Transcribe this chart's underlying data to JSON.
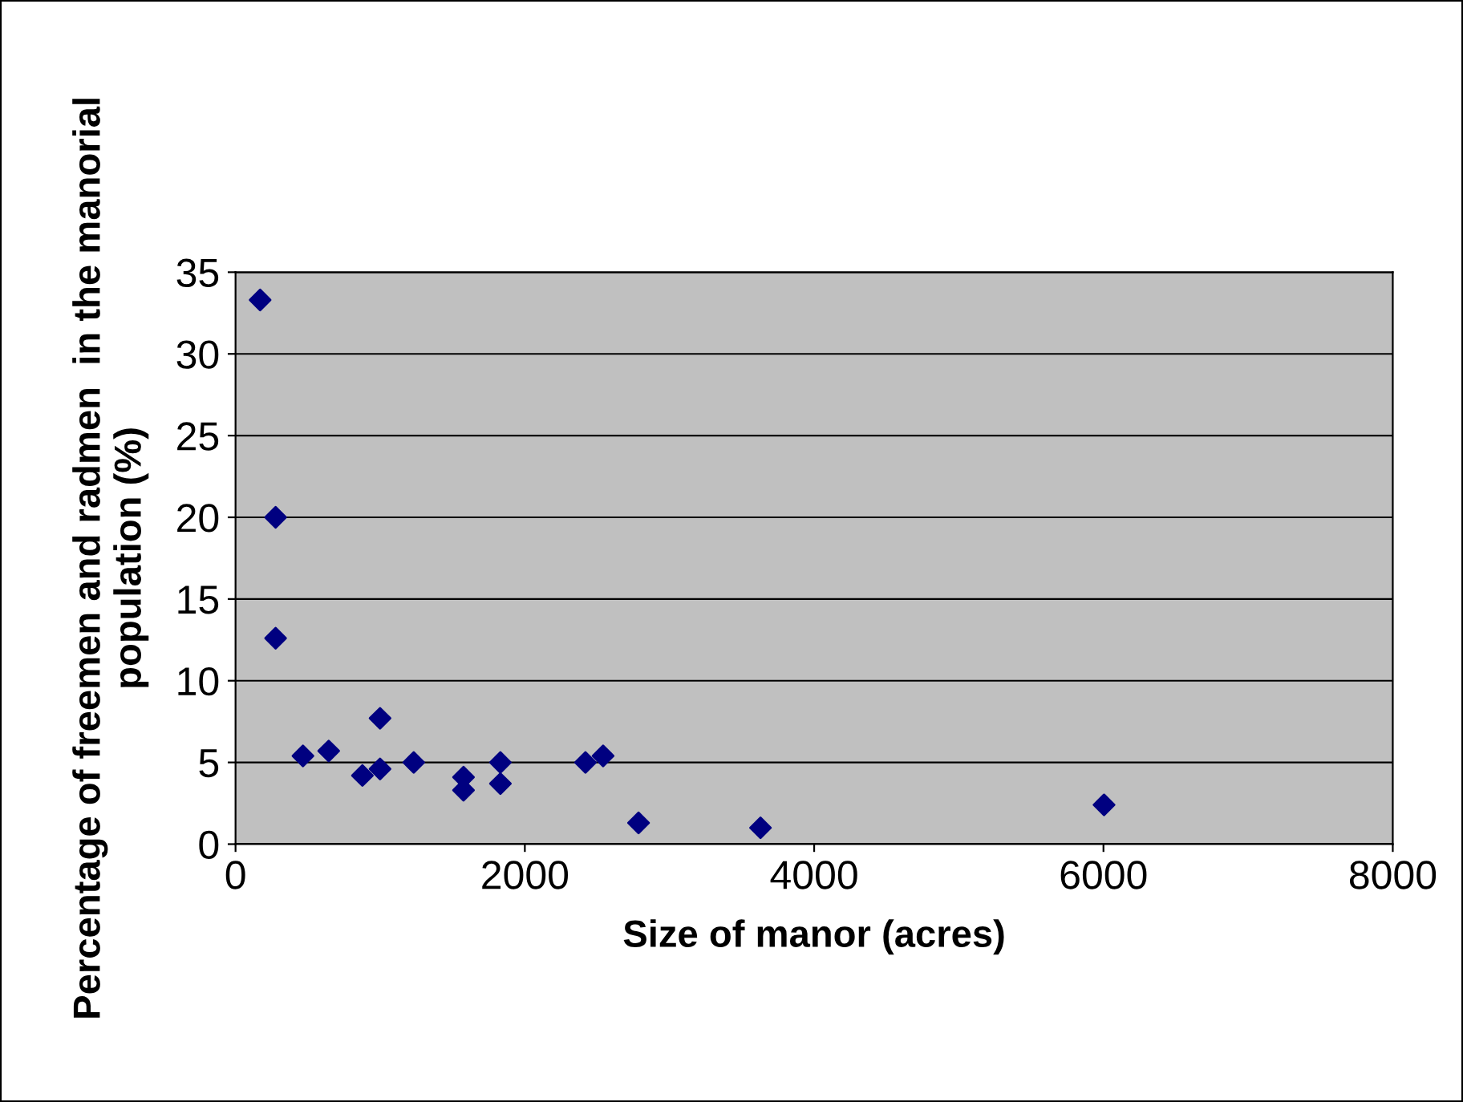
{
  "chart_data": {
    "type": "scatter",
    "xlabel": "Size of manor (acres)",
    "ylabel": "Percentage of freemen and radmen  in the manorial population (%)",
    "x": [
      170,
      277,
      277,
      466,
      644,
      877,
      999,
      999,
      1232,
      1576,
      1576,
      1831,
      1831,
      2419,
      2541,
      2786,
      3629,
      6004
    ],
    "series": [
      {
        "color": "#000080",
        "values": [
          33.3,
          20.0,
          12.6,
          5.4,
          5.7,
          4.2,
          7.7,
          4.6,
          5.0,
          4.1,
          3.3,
          5.0,
          3.7,
          5.0,
          5.4,
          1.3,
          1.0,
          2.4
        ]
      }
    ],
    "xlim": [
      0,
      8000
    ],
    "xticks": [
      0,
      2000,
      4000,
      6000,
      8000
    ],
    "ylim": [
      0,
      35
    ],
    "yticks": [
      0,
      5,
      10,
      15,
      20,
      25,
      30,
      35
    ],
    "grid": "y",
    "marker": "diamond",
    "legend": false
  }
}
